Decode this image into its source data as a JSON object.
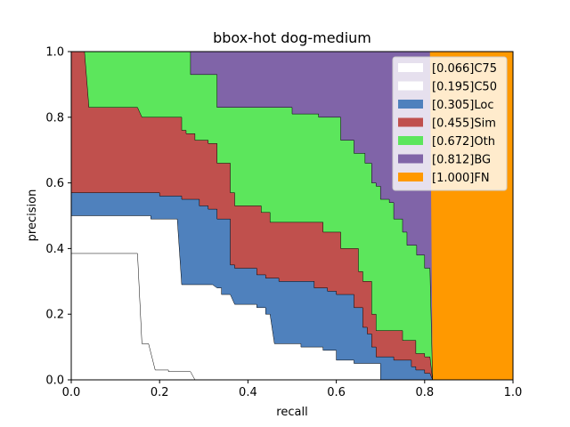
{
  "chart_data": {
    "type": "area",
    "title": "bbox-hot dog-medium",
    "xlabel": "recall",
    "ylabel": "precision",
    "xlim": [
      0.0,
      1.0
    ],
    "ylim": [
      0.0,
      1.0
    ],
    "xticks": [
      "0.0",
      "0.2",
      "0.4",
      "0.6",
      "0.8",
      "1.0"
    ],
    "yticks": [
      "0.0",
      "0.2",
      "0.4",
      "0.6",
      "0.8",
      "1.0"
    ],
    "grid": false,
    "legend_position": "upper-right",
    "series": [
      {
        "name": "[1.000]FN",
        "color": "#ff9900",
        "outline": false,
        "points": [
          [
            0,
            1.0
          ],
          [
            1.0,
            1.0
          ]
        ]
      },
      {
        "name": "[0.812]BG",
        "color": "#8064a8",
        "outline": false,
        "points": [
          [
            0,
            1.0
          ],
          [
            0.812,
            1.0
          ],
          [
            0.818,
            0.0
          ]
        ]
      },
      {
        "name": "[0.672]Oth",
        "color": "#5ce65c",
        "outline": true,
        "points": [
          [
            0,
            1.0
          ],
          [
            0.27,
            1.0
          ],
          [
            0.27,
            0.93
          ],
          [
            0.33,
            0.93
          ],
          [
            0.33,
            0.83
          ],
          [
            0.5,
            0.83
          ],
          [
            0.5,
            0.81
          ],
          [
            0.56,
            0.81
          ],
          [
            0.56,
            0.8
          ],
          [
            0.61,
            0.8
          ],
          [
            0.61,
            0.73
          ],
          [
            0.64,
            0.73
          ],
          [
            0.64,
            0.69
          ],
          [
            0.665,
            0.69
          ],
          [
            0.665,
            0.66
          ],
          [
            0.68,
            0.66
          ],
          [
            0.68,
            0.6
          ],
          [
            0.69,
            0.6
          ],
          [
            0.69,
            0.59
          ],
          [
            0.7,
            0.59
          ],
          [
            0.7,
            0.55
          ],
          [
            0.72,
            0.55
          ],
          [
            0.72,
            0.54
          ],
          [
            0.73,
            0.54
          ],
          [
            0.73,
            0.49
          ],
          [
            0.75,
            0.49
          ],
          [
            0.75,
            0.45
          ],
          [
            0.76,
            0.45
          ],
          [
            0.76,
            0.41
          ],
          [
            0.782,
            0.41
          ],
          [
            0.782,
            0.38
          ],
          [
            0.8,
            0.38
          ],
          [
            0.8,
            0.34
          ],
          [
            0.812,
            0.34
          ],
          [
            0.818,
            0.0
          ]
        ]
      },
      {
        "name": "[0.455]Sim",
        "color": "#c0504d",
        "outline": true,
        "points": [
          [
            0,
            1.0
          ],
          [
            0.03,
            1.0
          ],
          [
            0.04,
            0.83
          ],
          [
            0.15,
            0.83
          ],
          [
            0.16,
            0.8
          ],
          [
            0.25,
            0.8
          ],
          [
            0.25,
            0.76
          ],
          [
            0.26,
            0.76
          ],
          [
            0.26,
            0.75
          ],
          [
            0.28,
            0.75
          ],
          [
            0.28,
            0.73
          ],
          [
            0.31,
            0.73
          ],
          [
            0.31,
            0.72
          ],
          [
            0.33,
            0.72
          ],
          [
            0.33,
            0.66
          ],
          [
            0.36,
            0.66
          ],
          [
            0.36,
            0.57
          ],
          [
            0.37,
            0.57
          ],
          [
            0.37,
            0.53
          ],
          [
            0.43,
            0.53
          ],
          [
            0.43,
            0.51
          ],
          [
            0.45,
            0.51
          ],
          [
            0.45,
            0.48
          ],
          [
            0.57,
            0.48
          ],
          [
            0.57,
            0.45
          ],
          [
            0.61,
            0.45
          ],
          [
            0.61,
            0.4
          ],
          [
            0.65,
            0.4
          ],
          [
            0.65,
            0.33
          ],
          [
            0.66,
            0.33
          ],
          [
            0.66,
            0.3
          ],
          [
            0.68,
            0.3
          ],
          [
            0.68,
            0.2
          ],
          [
            0.69,
            0.2
          ],
          [
            0.69,
            0.15
          ],
          [
            0.75,
            0.15
          ],
          [
            0.75,
            0.12
          ],
          [
            0.78,
            0.12
          ],
          [
            0.78,
            0.08
          ],
          [
            0.8,
            0.08
          ],
          [
            0.8,
            0.07
          ],
          [
            0.812,
            0.07
          ],
          [
            0.818,
            0.0
          ]
        ]
      },
      {
        "name": "[0.305]Loc",
        "color": "#4f81bd",
        "outline": true,
        "points": [
          [
            0,
            0.57
          ],
          [
            0.2,
            0.57
          ],
          [
            0.2,
            0.56
          ],
          [
            0.25,
            0.56
          ],
          [
            0.25,
            0.55
          ],
          [
            0.29,
            0.55
          ],
          [
            0.29,
            0.53
          ],
          [
            0.31,
            0.53
          ],
          [
            0.31,
            0.52
          ],
          [
            0.33,
            0.52
          ],
          [
            0.33,
            0.49
          ],
          [
            0.36,
            0.49
          ],
          [
            0.36,
            0.35
          ],
          [
            0.37,
            0.35
          ],
          [
            0.37,
            0.34
          ],
          [
            0.42,
            0.34
          ],
          [
            0.42,
            0.32
          ],
          [
            0.44,
            0.32
          ],
          [
            0.44,
            0.31
          ],
          [
            0.47,
            0.31
          ],
          [
            0.47,
            0.3
          ],
          [
            0.55,
            0.3
          ],
          [
            0.55,
            0.28
          ],
          [
            0.58,
            0.28
          ],
          [
            0.58,
            0.27
          ],
          [
            0.6,
            0.27
          ],
          [
            0.6,
            0.26
          ],
          [
            0.64,
            0.26
          ],
          [
            0.64,
            0.22
          ],
          [
            0.66,
            0.22
          ],
          [
            0.66,
            0.16
          ],
          [
            0.67,
            0.16
          ],
          [
            0.67,
            0.14
          ],
          [
            0.68,
            0.14
          ],
          [
            0.68,
            0.1
          ],
          [
            0.69,
            0.1
          ],
          [
            0.69,
            0.07
          ],
          [
            0.73,
            0.07
          ],
          [
            0.73,
            0.06
          ],
          [
            0.77,
            0.06
          ],
          [
            0.77,
            0.04
          ],
          [
            0.78,
            0.04
          ],
          [
            0.78,
            0.03
          ],
          [
            0.8,
            0.03
          ],
          [
            0.8,
            0.02
          ],
          [
            0.812,
            0.02
          ],
          [
            0.818,
            0.0
          ]
        ]
      },
      {
        "name": "[0.195]C50",
        "color": "#ffffff",
        "outline": true,
        "points": [
          [
            0,
            0.5
          ],
          [
            0.18,
            0.5
          ],
          [
            0.18,
            0.49
          ],
          [
            0.24,
            0.49
          ],
          [
            0.25,
            0.29
          ],
          [
            0.32,
            0.29
          ],
          [
            0.33,
            0.28
          ],
          [
            0.34,
            0.28
          ],
          [
            0.34,
            0.26
          ],
          [
            0.36,
            0.26
          ],
          [
            0.37,
            0.23
          ],
          [
            0.42,
            0.23
          ],
          [
            0.42,
            0.22
          ],
          [
            0.44,
            0.22
          ],
          [
            0.44,
            0.2
          ],
          [
            0.45,
            0.2
          ],
          [
            0.46,
            0.11
          ],
          [
            0.52,
            0.11
          ],
          [
            0.52,
            0.1
          ],
          [
            0.57,
            0.1
          ],
          [
            0.57,
            0.09
          ],
          [
            0.6,
            0.09
          ],
          [
            0.6,
            0.06
          ],
          [
            0.64,
            0.06
          ],
          [
            0.64,
            0.05
          ],
          [
            0.7,
            0.05
          ],
          [
            0.7,
            0.0
          ]
        ]
      },
      {
        "name": "[0.066]C75",
        "color": "#ffffff",
        "outline": true,
        "points": [
          [
            0,
            0.385
          ],
          [
            0.15,
            0.385
          ],
          [
            0.16,
            0.11
          ],
          [
            0.175,
            0.11
          ],
          [
            0.19,
            0.03
          ],
          [
            0.22,
            0.03
          ],
          [
            0.22,
            0.025
          ],
          [
            0.27,
            0.025
          ],
          [
            0.28,
            0.0
          ]
        ]
      }
    ],
    "legend": [
      {
        "label": "[0.066]C75",
        "color": "#ffffff"
      },
      {
        "label": "[0.195]C50",
        "color": "#ffffff"
      },
      {
        "label": "[0.305]Loc",
        "color": "#4f81bd"
      },
      {
        "label": "[0.455]Sim",
        "color": "#c0504d"
      },
      {
        "label": "[0.672]Oth",
        "color": "#5ce65c"
      },
      {
        "label": "[0.812]BG",
        "color": "#8064a8"
      },
      {
        "label": "[1.000]FN",
        "color": "#ff9900"
      }
    ]
  }
}
